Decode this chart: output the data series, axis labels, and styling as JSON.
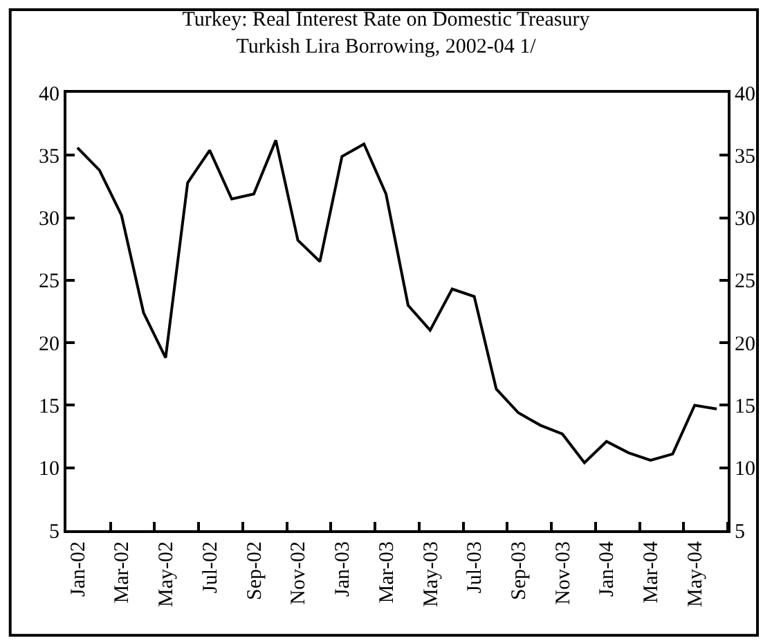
{
  "chart_data": {
    "type": "line",
    "title": "Turkey: Real Interest Rate on Domestic Treasury\nTurkish Lira Borrowing, 2002-04 1/",
    "categories": [
      "Jan-02",
      null,
      "Mar-02",
      null,
      "May-02",
      null,
      "Jul-02",
      null,
      "Sep-02",
      null,
      "Nov-02",
      null,
      "Jan-03",
      null,
      "Mar-03",
      null,
      "May-03",
      null,
      "Jul-03",
      null,
      "Sep-03",
      null,
      "Nov-03",
      null,
      "Jan-04",
      null,
      "Mar-04",
      null,
      "May-04",
      null
    ],
    "series": [
      {
        "color": "#000000",
        "values": [
          35.6,
          33.8,
          30.2,
          22.4,
          18.8,
          32.8,
          35.4,
          31.5,
          31.9,
          36.2,
          28.2,
          26.5,
          34.9,
          35.9,
          31.9,
          23.0,
          21.0,
          24.3,
          23.7,
          16.3,
          14.4,
          13.4,
          12.7,
          10.4,
          12.1,
          11.2,
          10.6,
          11.1,
          15.0,
          14.7
        ]
      }
    ],
    "ylim": [
      5,
      40
    ],
    "yticks": [
      5,
      10,
      15,
      20,
      25,
      30,
      35,
      40
    ],
    "y2lim": [
      5,
      40
    ],
    "y2ticks": [
      5,
      10,
      15,
      20,
      25,
      30,
      35,
      40
    ],
    "marker": "none",
    "line_style": "solid"
  }
}
